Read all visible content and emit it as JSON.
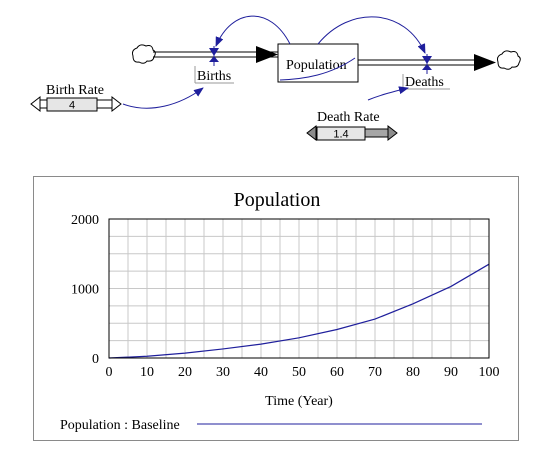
{
  "diagram": {
    "stock_label": "Population",
    "inflow_label": "Births",
    "outflow_label": "Deaths",
    "birth_rate_label": "Birth Rate",
    "birth_rate_value": "4",
    "death_rate_label": "Death Rate",
    "death_rate_value": "1.4",
    "link_color": "#1f1f9c"
  },
  "chart_data": {
    "type": "line",
    "title": "Population",
    "xlabel": "Time (Year)",
    "ylabel": "",
    "xlim": [
      0,
      100
    ],
    "ylim": [
      0,
      2000
    ],
    "x_ticks": [
      0,
      10,
      20,
      30,
      40,
      50,
      60,
      70,
      80,
      90,
      100
    ],
    "y_ticks": [
      0,
      1000,
      2000
    ],
    "grid": true,
    "legend_position": "bottom",
    "series": [
      {
        "name": "Population : Baseline",
        "color": "#1f1f9c",
        "x": [
          0,
          10,
          20,
          30,
          40,
          50,
          60,
          70,
          80,
          90,
          100
        ],
        "y": [
          0,
          25,
          70,
          130,
          200,
          290,
          410,
          560,
          780,
          1030,
          1350
        ]
      }
    ]
  }
}
